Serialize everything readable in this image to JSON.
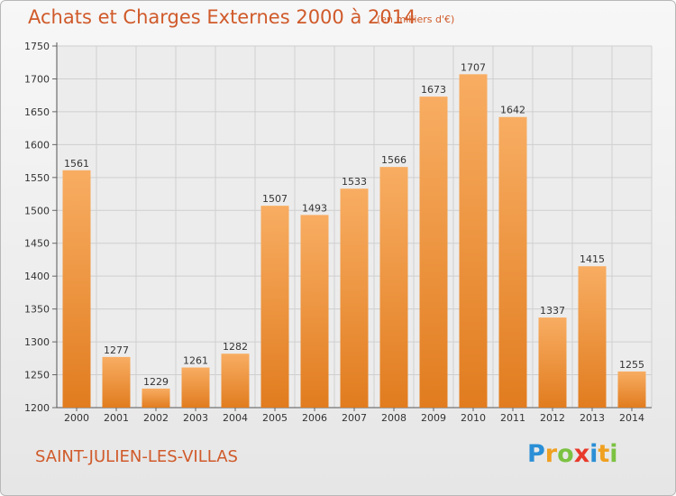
{
  "header": {
    "title": "Achats et Charges Externes 2000 à 2014",
    "subtitle": "(en milliers d'€)"
  },
  "footer": {
    "city": "SAINT-JULIEN-LES-VILLAS",
    "logo_letters": [
      "P",
      "r",
      "o",
      "x",
      "i",
      "t",
      "i"
    ],
    "logo_colors": [
      "#2a8fd6",
      "#f0a020",
      "#7cc242",
      "#e8392b",
      "#2a8fd6",
      "#f0a020",
      "#7cc242"
    ]
  },
  "colors": {
    "bar_light": "#f8ad62",
    "bar_dark": "#e17c1f",
    "grid": "#cfcfcf",
    "text_accent": "#d05a2a"
  },
  "chart_data": {
    "type": "bar",
    "title": "Achats et Charges Externes 2000 à 2014",
    "subtitle": "(en milliers d'€)",
    "xlabel": "",
    "ylabel": "",
    "categories": [
      "2000",
      "2001",
      "2002",
      "2003",
      "2004",
      "2005",
      "2006",
      "2007",
      "2008",
      "2009",
      "2010",
      "2011",
      "2012",
      "2013",
      "2014"
    ],
    "values": [
      1561,
      1277,
      1229,
      1261,
      1282,
      1507,
      1493,
      1533,
      1566,
      1673,
      1707,
      1642,
      1337,
      1415,
      1255
    ],
    "ylim": [
      1200,
      1750
    ],
    "yticks": [
      1200,
      1250,
      1300,
      1350,
      1400,
      1450,
      1500,
      1550,
      1600,
      1650,
      1700,
      1750
    ],
    "grid": true,
    "data_labels": true
  }
}
